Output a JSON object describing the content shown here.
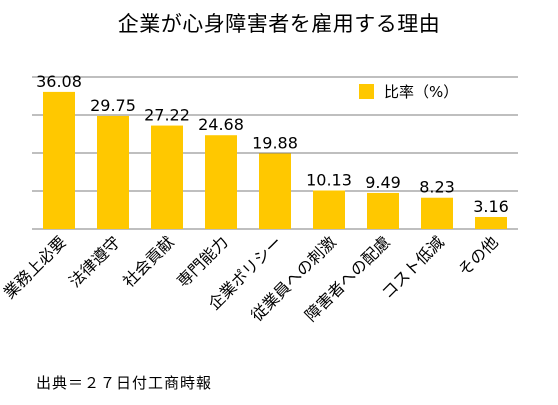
{
  "chart_data": {
    "type": "bar",
    "title": "企業が心身障害者を雇用する理由",
    "categories": [
      "業務上必要",
      "法律遵守",
      "社会貢献",
      "専門能力",
      "企業ポリシー",
      "従業員への刺激",
      "障害者への配慮",
      "コスト低減",
      "その他"
    ],
    "series": [
      {
        "name": "比率（%）",
        "values": [
          36.08,
          29.75,
          27.22,
          24.68,
          19.88,
          10.13,
          9.49,
          8.23,
          3.16
        ],
        "color": "#FFC800"
      }
    ],
    "value_labels": [
      "36.08",
      "29.75",
      "27.22",
      "24.68",
      "19.88",
      "10.13",
      "9.49",
      "8.23",
      "3.16"
    ],
    "ylim": [
      0,
      40
    ],
    "grid": true,
    "y_axis_visible": false,
    "legend_position": "top-right",
    "xlabel": "",
    "ylabel": ""
  },
  "source": "出典＝２７日付工商時報",
  "colors": {
    "bar": "#FFC800",
    "grid": "#7f7f7f"
  }
}
